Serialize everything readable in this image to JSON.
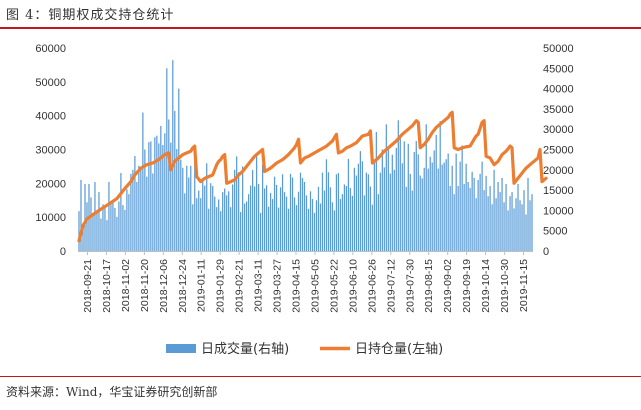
{
  "figure": {
    "title": "图 4：铜期权成交持仓统计",
    "source": "资料来源：Wind，华宝证券研究创新部"
  },
  "chart_data": {
    "type": "bar+line",
    "title": "",
    "x_labels": [
      "2018-09-21",
      "2018-10-17",
      "2018-11-02",
      "2018-11-20",
      "2018-12-06",
      "2018-12-24",
      "2019-01-11",
      "2019-01-29",
      "2019-02-21",
      "2019-03-11",
      "2019-03-27",
      "2019-04-15",
      "2019-05-05",
      "2019-05-22",
      "2019-06-10",
      "2019-06-26",
      "2019-07-12",
      "2019-07-30",
      "2019-08-15",
      "2019-09-02",
      "2019-09-19",
      "2019-10-14",
      "2019-10-30",
      "2019-11-15"
    ],
    "left_axis": {
      "min": 0,
      "max": 60000,
      "ticks": [
        0,
        10000,
        20000,
        30000,
        40000,
        50000,
        60000
      ]
    },
    "right_axis": {
      "min": 0,
      "max": 50000,
      "ticks": [
        0,
        5000,
        10000,
        15000,
        20000,
        25000,
        30000,
        35000,
        40000,
        45000,
        50000
      ]
    },
    "legend": {
      "position": "bottom",
      "entries": [
        "日成交量(右轴)",
        "日持仓量(左轴)"
      ]
    },
    "series": [
      {
        "name": "日成交量(右轴)",
        "kind": "bar",
        "axis": "right",
        "color": "#5b9bd5",
        "values": [
          9800,
          17500,
          5500,
          16500,
          12000,
          16500,
          13200,
          8900,
          17000,
          9600,
          14500,
          8000,
          11500,
          10500,
          7600,
          17000,
          11800,
          12400,
          10600,
          8400,
          12200,
          19200,
          11300,
          10100,
          15200,
          14000,
          19000,
          20000,
          23400,
          17000,
          21000,
          20800,
          34100,
          25000,
          18300,
          26800,
          27000,
          19100,
          28000,
          28400,
          26500,
          30800,
          26100,
          29000,
          45000,
          32400,
          26700,
          47000,
          34500,
          25100,
          40000,
          22500,
          20500,
          14200,
          21000,
          18100,
          21000,
          11500,
          22400,
          13000,
          14900,
          13000,
          18000,
          16100,
          21600,
          10400,
          16700,
          16000,
          13400,
          10800,
          12700,
          9800,
          14500,
          15400,
          13700,
          14700,
          10800,
          16400,
          20000,
          23300,
          19400,
          9600,
          20800,
          11700,
          12200,
          14000,
          16100,
          20000,
          15900,
          23300,
          16500,
          9400,
          21300,
          15400,
          16200,
          10900,
          14300,
          12800,
          18300,
          16300,
          10700,
          15700,
          18900,
          14500,
          13400,
          10400,
          19000,
          18100,
          13200,
          11300,
          14600,
          19300,
          18000,
          17000,
          13700,
          10400,
          14700,
          12800,
          9400,
          12500,
          15800,
          11700,
          19300,
          14900,
          22600,
          19400,
          15700,
          12000,
          10000,
          18900,
          19200,
          12800,
          14000,
          16400,
          16000,
          22700,
          15500,
          13600,
          20500,
          18600,
          21500,
          24600,
          22100,
          13700,
          19300,
          18900,
          15900,
          11400,
          21700,
          29300,
          14000,
          19300,
          25000,
          20600,
          31200,
          25300,
          19100,
          23700,
          20000,
          25400,
          32200,
          28300,
          21600,
          27000,
          15800,
          26400,
          19000,
          14900,
          24400,
          27100,
          23800,
          18600,
          17900,
          20500,
          31200,
          20300,
          23200,
          21800,
          24800,
          28600,
          20300,
          32000,
          21300,
          21800,
          22600,
          24000,
          16000,
          21000,
          14000,
          24000,
          16000,
          22000,
          26000,
          16500,
          21500,
          17000,
          15500,
          19500,
          18000,
          13000,
          17500,
          19000,
          22000,
          15000,
          18500,
          13500,
          16000,
          11500,
          20000,
          13000,
          17000,
          14500,
          18000,
          12000,
          16500,
          10000,
          13500,
          14500,
          10500,
          13000,
          16500,
          12500,
          11500,
          15000,
          9000,
          18000,
          12500,
          14000
        ]
      },
      {
        "name": "日持仓量(左轴)",
        "kind": "line",
        "axis": "left",
        "color": "#ed7d31",
        "points": [
          [
            0,
            3000
          ],
          [
            2,
            7500
          ],
          [
            4,
            9500
          ],
          [
            7,
            10800
          ],
          [
            10,
            12000
          ],
          [
            14,
            13500
          ],
          [
            19,
            15500
          ],
          [
            23,
            18500
          ],
          [
            26,
            20500
          ],
          [
            28,
            22500
          ],
          [
            31,
            24500
          ],
          [
            34,
            25500
          ],
          [
            37,
            26000
          ],
          [
            40,
            27000
          ],
          [
            43,
            28500
          ],
          [
            45,
            29000
          ],
          [
            46,
            24000
          ],
          [
            48,
            26500
          ],
          [
            50,
            27500
          ],
          [
            52,
            28500
          ],
          [
            54,
            29000
          ],
          [
            56,
            29500
          ],
          [
            57,
            30500
          ],
          [
            58,
            31000
          ],
          [
            59,
            22000
          ],
          [
            61,
            20500
          ],
          [
            63,
            21500
          ],
          [
            65,
            22000
          ],
          [
            67,
            22500
          ],
          [
            68,
            24000
          ],
          [
            69,
            25500
          ],
          [
            70,
            26500
          ],
          [
            71,
            27000
          ],
          [
            72,
            28000
          ],
          [
            73,
            28500
          ],
          [
            74,
            20000
          ],
          [
            76,
            20500
          ],
          [
            78,
            21000
          ],
          [
            80,
            22500
          ],
          [
            82,
            23500
          ],
          [
            84,
            25000
          ],
          [
            86,
            26500
          ],
          [
            88,
            28000
          ],
          [
            90,
            29000
          ],
          [
            91,
            29500
          ],
          [
            92,
            30000
          ],
          [
            93,
            23500
          ],
          [
            96,
            24500
          ],
          [
            99,
            26000
          ],
          [
            102,
            27000
          ],
          [
            105,
            28500
          ],
          [
            108,
            30500
          ],
          [
            109,
            31500
          ],
          [
            110,
            33000
          ],
          [
            111,
            26000
          ],
          [
            113,
            27500
          ],
          [
            115,
            28000
          ],
          [
            118,
            29000
          ],
          [
            121,
            30000
          ],
          [
            124,
            31000
          ],
          [
            127,
            32500
          ],
          [
            128,
            33500
          ],
          [
            129,
            34500
          ],
          [
            130,
            29000
          ],
          [
            132,
            29500
          ],
          [
            134,
            30500
          ],
          [
            136,
            31000
          ],
          [
            139,
            32000
          ],
          [
            142,
            34000
          ],
          [
            145,
            34500
          ],
          [
            146,
            35500
          ],
          [
            147,
            26000
          ],
          [
            150,
            27500
          ],
          [
            153,
            29500
          ],
          [
            156,
            31000
          ],
          [
            159,
            32500
          ],
          [
            162,
            34500
          ],
          [
            165,
            36000
          ],
          [
            167,
            37000
          ],
          [
            169,
            38500
          ],
          [
            170,
            38000
          ],
          [
            171,
            30500
          ],
          [
            173,
            31500
          ],
          [
            175,
            33000
          ],
          [
            177,
            35000
          ],
          [
            179,
            36500
          ],
          [
            181,
            37500
          ],
          [
            183,
            38500
          ],
          [
            185,
            39500
          ],
          [
            186,
            40500
          ],
          [
            187,
            41000
          ],
          [
            188,
            30500
          ],
          [
            190,
            30000
          ],
          [
            192,
            30500
          ],
          [
            194,
            30800
          ],
          [
            196,
            31000
          ],
          [
            199,
            34000
          ],
          [
            200,
            34500
          ],
          [
            202,
            38000
          ],
          [
            203,
            38500
          ],
          [
            204,
            28000
          ],
          [
            206,
            27500
          ],
          [
            208,
            25500
          ],
          [
            210,
            26500
          ],
          [
            212,
            28500
          ],
          [
            214,
            29500
          ],
          [
            216,
            31000
          ],
          [
            217,
            30500
          ],
          [
            218,
            20000
          ],
          [
            220,
            21500
          ],
          [
            222,
            23000
          ],
          [
            224,
            24500
          ],
          [
            226,
            25500
          ],
          [
            228,
            26500
          ],
          [
            230,
            27500
          ],
          [
            231,
            30000
          ],
          [
            232,
            20500
          ],
          [
            234,
            21500
          ]
        ]
      }
    ]
  }
}
